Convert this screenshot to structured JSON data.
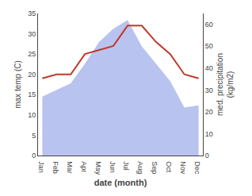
{
  "chart_data": {
    "type": "line",
    "categories": [
      "Jan",
      "Feb",
      "Mar",
      "Apr",
      "May",
      "Jun",
      "Jul",
      "Aug",
      "Sep",
      "Oct",
      "Nov",
      "Dec"
    ],
    "series": [
      {
        "type": "area",
        "axis": "y2",
        "color": "#b8c4ef",
        "values": [
          27,
          30,
          33,
          42,
          52,
          58,
          62,
          50,
          42,
          34,
          22,
          23
        ]
      },
      {
        "type": "line",
        "color": "#c0392b",
        "values": [
          19,
          20,
          20,
          25,
          26,
          27,
          32,
          32,
          28,
          25,
          20,
          19
        ]
      }
    ],
    "x_label": "date (month)",
    "y_label": "max temp (C)",
    "y2_label": "med. precipitation\n(kg/m2)",
    "ylim": [
      0,
      35
    ],
    "yticks": [
      0,
      5,
      10,
      15,
      20,
      25,
      30,
      35
    ],
    "y2lim": [
      0,
      65
    ],
    "y2ticks": [
      0,
      10,
      20,
      30,
      40,
      50,
      60
    ],
    "grid": false
  }
}
